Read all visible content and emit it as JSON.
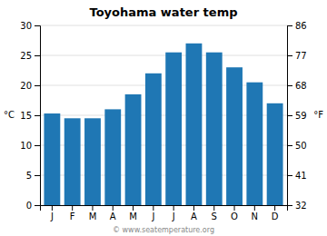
{
  "chart_data": {
    "type": "bar",
    "title": "Toyohama water temp",
    "categories": [
      "J",
      "F",
      "M",
      "A",
      "M",
      "J",
      "J",
      "A",
      "S",
      "O",
      "N",
      "D"
    ],
    "values": [
      15.3,
      14.5,
      14.5,
      16.0,
      18.5,
      22.0,
      25.5,
      27.0,
      25.5,
      23.0,
      20.5,
      17.0
    ],
    "ylabel": "°C",
    "y2label": "°F",
    "ylim": [
      0,
      30
    ],
    "yticks": [
      0,
      5,
      10,
      15,
      20,
      25,
      30
    ],
    "y2lim": [
      32,
      86
    ],
    "y2ticks": [
      32,
      41,
      50,
      59,
      68,
      77,
      86
    ],
    "grid": true,
    "annotations": [
      "© www.seatemperature.org"
    ]
  }
}
